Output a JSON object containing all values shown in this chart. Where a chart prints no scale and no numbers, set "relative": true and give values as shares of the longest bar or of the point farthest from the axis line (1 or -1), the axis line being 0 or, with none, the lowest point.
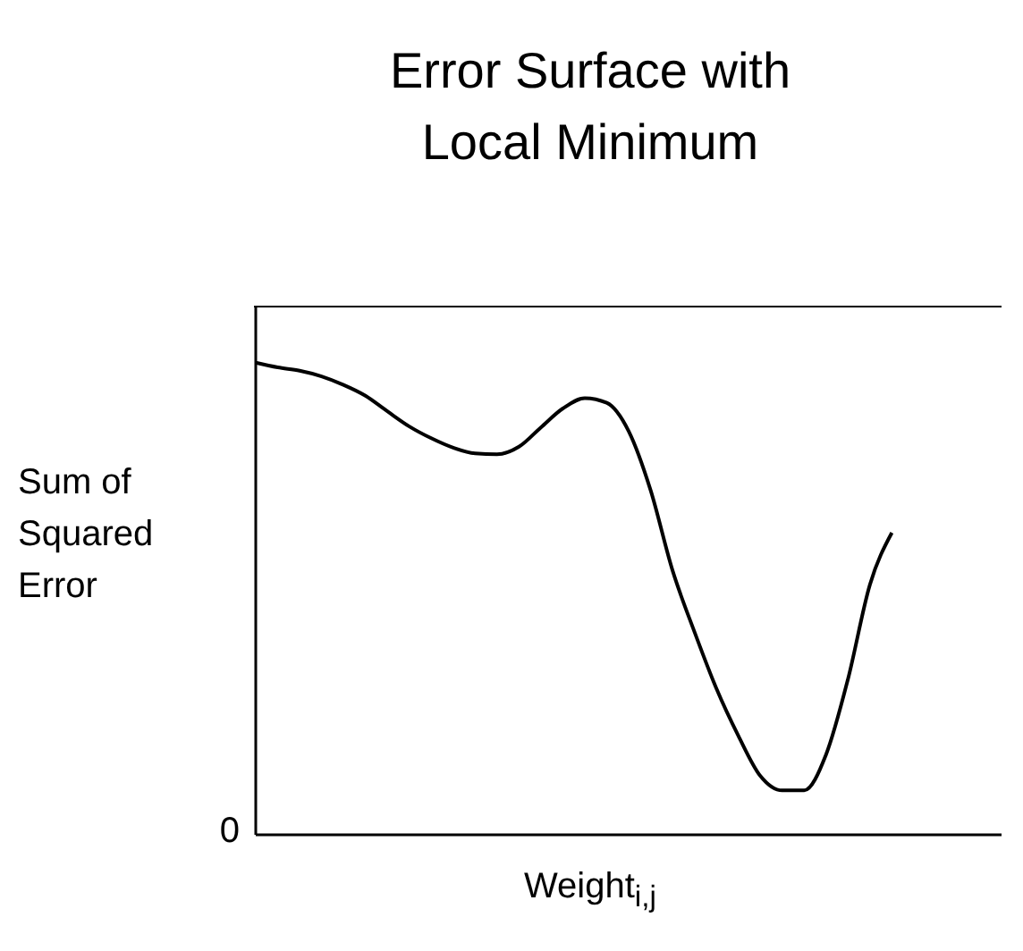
{
  "chart_data": {
    "type": "line",
    "title": "Error Surface with Local Minimum",
    "xlabel": "Weight$_{i,j}$",
    "ylabel": "Sum of Squared Error",
    "relative": true,
    "annotations": [
      "0"
    ],
    "marker": "none",
    "line_style": "solid",
    "legend": false,
    "grid": false,
    "categories": [
      null,
      null,
      null,
      null,
      null,
      null,
      null,
      null,
      null,
      null,
      null,
      null,
      null,
      null,
      null,
      null,
      null,
      null,
      null,
      null,
      null,
      null,
      null,
      null,
      null,
      null,
      null,
      null,
      null,
      null,
      null,
      null,
      null,
      null,
      null
    ],
    "series": [
      {
        "color": "#000000",
        "values": [
          1.0,
          0.99,
          0.983,
          0.971,
          0.953,
          0.93,
          0.897,
          0.865,
          0.84,
          0.82,
          0.808,
          0.806,
          0.822,
          0.863,
          0.903,
          0.925,
          0.915,
          0.855,
          0.73,
          0.56,
          0.43,
          0.31,
          0.21,
          0.125,
          0.094,
          0.094,
          0.17,
          0.33,
          0.53,
          0.64,
          null,
          null,
          null,
          null,
          null
        ]
      }
    ]
  }
}
